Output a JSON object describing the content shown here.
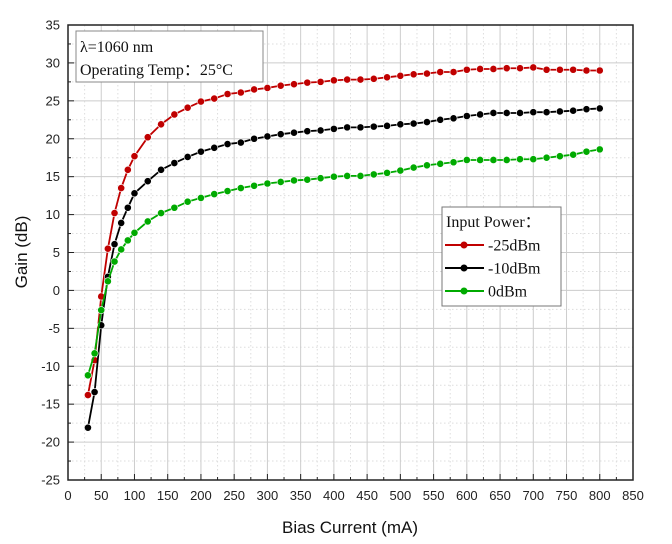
{
  "chart_data": {
    "type": "line",
    "xlabel": "Bias Current (mA)",
    "ylabel": "Gain (dB)",
    "xlim": [
      0,
      850
    ],
    "ylim": [
      -25,
      35
    ],
    "xticks": [
      0,
      50,
      100,
      150,
      200,
      250,
      300,
      350,
      400,
      450,
      500,
      550,
      600,
      650,
      700,
      750,
      800,
      850
    ],
    "yticks": [
      -25,
      -20,
      -15,
      -10,
      -5,
      0,
      5,
      10,
      15,
      20,
      25,
      30,
      35
    ],
    "grid": true,
    "annotation": [
      "λ=1060 nm",
      "Operating Temp：25°C"
    ],
    "legend": {
      "title": "Input Power：",
      "placement": "center-right"
    },
    "x": [
      30,
      40,
      50,
      60,
      70,
      80,
      90,
      100,
      120,
      140,
      160,
      180,
      200,
      220,
      240,
      260,
      280,
      300,
      320,
      340,
      360,
      380,
      400,
      420,
      440,
      460,
      480,
      500,
      520,
      540,
      560,
      580,
      600,
      620,
      640,
      660,
      680,
      700,
      720,
      740,
      760,
      780,
      800
    ],
    "series": [
      {
        "name": "-25dBm",
        "color": "#c00000",
        "values": [
          -13.8,
          -9.2,
          -0.8,
          5.5,
          10.2,
          13.5,
          15.9,
          17.7,
          20.2,
          21.9,
          23.2,
          24.1,
          24.9,
          25.3,
          25.9,
          26.1,
          26.5,
          26.7,
          27.0,
          27.2,
          27.4,
          27.5,
          27.7,
          27.8,
          27.8,
          27.9,
          28.1,
          28.3,
          28.5,
          28.6,
          28.8,
          28.8,
          29.1,
          29.2,
          29.2,
          29.3,
          29.3,
          29.4,
          29.1,
          29.1,
          29.1,
          29.0,
          29.0
        ]
      },
      {
        "name": "-10dBm",
        "color": "#000000",
        "values": [
          -18.1,
          -13.4,
          -4.6,
          1.8,
          6.1,
          8.9,
          10.9,
          12.8,
          14.4,
          15.9,
          16.8,
          17.6,
          18.3,
          18.8,
          19.3,
          19.5,
          20.0,
          20.3,
          20.6,
          20.8,
          21.0,
          21.1,
          21.3,
          21.5,
          21.5,
          21.6,
          21.7,
          21.9,
          22.0,
          22.2,
          22.5,
          22.7,
          23.0,
          23.2,
          23.4,
          23.4,
          23.4,
          23.5,
          23.5,
          23.6,
          23.7,
          23.9,
          24.0
        ]
      },
      {
        "name": "0dBm",
        "color": "#00aa00",
        "values": [
          -11.2,
          -8.3,
          -2.6,
          1.2,
          3.8,
          5.4,
          6.6,
          7.6,
          9.1,
          10.2,
          10.9,
          11.7,
          12.2,
          12.7,
          13.1,
          13.5,
          13.8,
          14.1,
          14.3,
          14.5,
          14.6,
          14.8,
          15.0,
          15.1,
          15.1,
          15.3,
          15.5,
          15.8,
          16.2,
          16.5,
          16.7,
          16.9,
          17.2,
          17.2,
          17.2,
          17.2,
          17.3,
          17.3,
          17.5,
          17.7,
          17.9,
          18.3,
          18.6
        ]
      }
    ]
  }
}
